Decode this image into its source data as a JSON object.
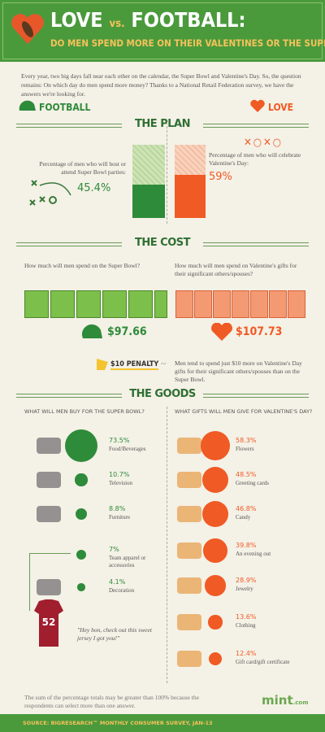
{
  "header": {
    "title_love": "LOVE",
    "title_vs": "vs.",
    "title_football": "FOOTBALL:",
    "subtitle": "DO MEN SPEND MORE ON THEIR VALENTINES OR THE SUPER BOWL?"
  },
  "intro": "Every year, two big days fall near each other on the calendar, the Super Bowl and Valentine's Day. So, the question remains: On which day do men spend more money? Thanks to a National Retail Federation survey, we have the answers we're looking for.",
  "labels": {
    "football": "FOOTBALL",
    "love": "LOVE"
  },
  "plan": {
    "heading": "THE PLAN",
    "football": {
      "text": "Percentage of men who will host or attend Super Bowl parties:",
      "value": 45.4,
      "value_label": "45.4%"
    },
    "love": {
      "text": "Percentage of men who will celebrate Valentine's Day:",
      "value": 59,
      "value_label": "59%"
    }
  },
  "cost": {
    "heading": "THE COST",
    "football": {
      "question": "How much will men spend on the Super Bowl?",
      "amount": "$97.66"
    },
    "love": {
      "question": "How much will men spend on Valentine's gifts for their significant others/spouses?",
      "amount": "$107.73"
    }
  },
  "penalty": {
    "label": "$10 PENALTY",
    "text": "Men tend to spend just $10 more on Valentine's Day gifts for their significant others/spouses than on the Super Bowl."
  },
  "goods": {
    "heading": "THE GOODS",
    "football": {
      "question": "WHAT WILL MEN BUY FOR THE SUPER BOWL?",
      "items": [
        {
          "label": "Food/Beverages",
          "value": 73.5,
          "value_label": "73.5%"
        },
        {
          "label": "Television",
          "value": 10.7,
          "value_label": "10.7%"
        },
        {
          "label": "Furniture",
          "value": 8.8,
          "value_label": "8.8%"
        },
        {
          "label": "Team apparel or accessories",
          "value": 7,
          "value_label": "7%"
        },
        {
          "label": "Decoration",
          "value": 4.1,
          "value_label": "4.1%"
        }
      ]
    },
    "love": {
      "question": "WHAT GIFTS WILL MEN GIVE FOR VALENTINE'S DAY?",
      "items": [
        {
          "label": "Flowers",
          "value": 58.3,
          "value_label": "58.3%"
        },
        {
          "label": "Greeting cards",
          "value": 48.5,
          "value_label": "48.5%"
        },
        {
          "label": "Candy",
          "value": 46.8,
          "value_label": "46.8%"
        },
        {
          "label": "An evening out",
          "value": 39.8,
          "value_label": "39.8%"
        },
        {
          "label": "Jewelry",
          "value": 28.9,
          "value_label": "28.9%"
        },
        {
          "label": "Clothing",
          "value": 13.6,
          "value_label": "13.6%"
        },
        {
          "label": "Gift card/gift certificate",
          "value": 12.4,
          "value_label": "12.4%"
        }
      ]
    }
  },
  "quote": "\"Hey hon, check out this sweet jersey I got you!\"",
  "footnote": "The sum of the percentage totals may be greater than 100% because the respondents can select more than one answer.",
  "logo": "mint",
  "logo_suffix": ".com",
  "source": "SOURCE: BIGRESEARCH™ MONTHLY CONSUMER SURVEY, JAN-13"
}
